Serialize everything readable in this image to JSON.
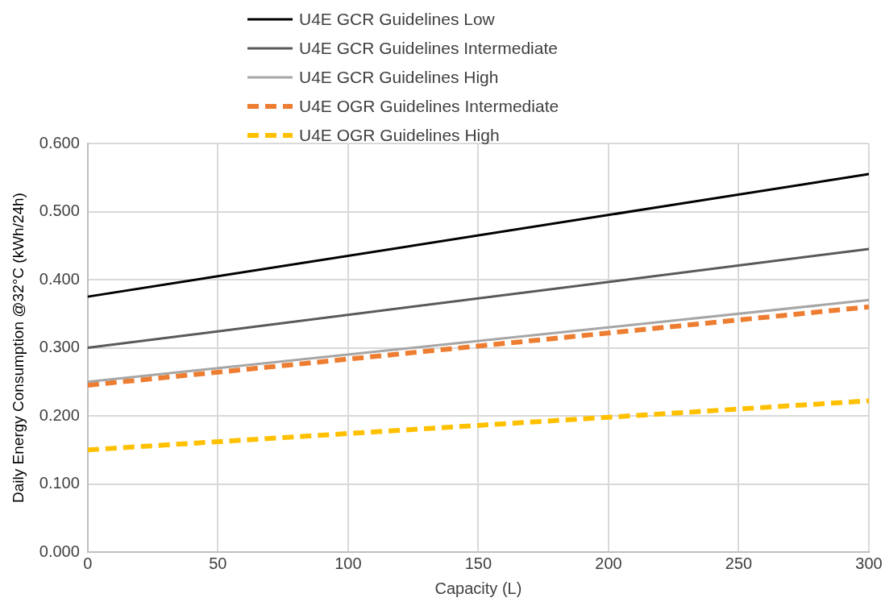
{
  "chart_data": {
    "type": "line",
    "xlabel": "Capacity (L)",
    "ylabel": "Daily Energy Consumption @32°C (kWh/24h)",
    "x": [
      0,
      300
    ],
    "xlim": [
      0,
      300
    ],
    "xticks": [
      0,
      50,
      100,
      150,
      200,
      250,
      300
    ],
    "ylim": [
      0,
      0.6
    ],
    "yticks": [
      {
        "value": 0,
        "label": "0.000"
      },
      {
        "value": 0.1,
        "label": "0.100"
      },
      {
        "value": 0.2,
        "label": "0.200"
      },
      {
        "value": 0.3,
        "label": "0.300"
      },
      {
        "value": 0.4,
        "label": "0.400"
      },
      {
        "value": 0.5,
        "label": "0.500"
      },
      {
        "value": 0.6,
        "label": "0.600"
      }
    ],
    "grid": true,
    "legend": "top",
    "marker": "none",
    "series": [
      {
        "name": "U4E GCR Guidelines Low",
        "color": "#000000",
        "values": [
          0.375,
          0.555
        ],
        "line_style": "solid"
      },
      {
        "name": "U4E GCR Guidelines Intermediate",
        "color": "#595959",
        "values": [
          0.3,
          0.445
        ],
        "line_style": "solid"
      },
      {
        "name": "U4E GCR Guidelines High",
        "color": "#a6a6a6",
        "values": [
          0.25,
          0.37
        ],
        "line_style": "solid"
      },
      {
        "name": "U4E OGR Guidelines Intermediate",
        "color": "#ed7d31",
        "values": [
          0.245,
          0.36
        ],
        "line_style": "dashed"
      },
      {
        "name": "U4E OGR Guidelines High",
        "color": "#ffc000",
        "values": [
          0.15,
          0.222
        ],
        "line_style": "dashed"
      }
    ]
  }
}
